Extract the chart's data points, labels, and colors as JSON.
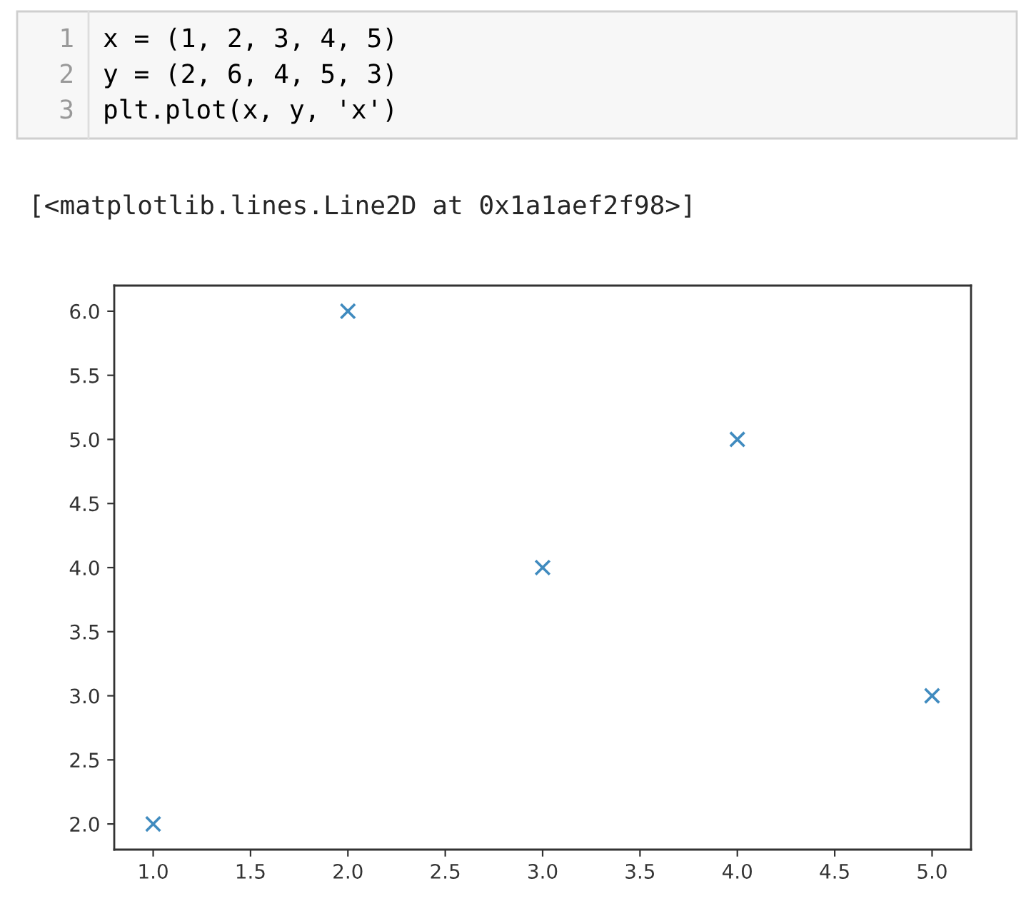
{
  "chart_data": {
    "type": "scatter",
    "annotations": [
      "1",
      "x = (1, 2, 3, 4, 5)",
      "2",
      "y = (2, 6, 4, 5, 3)",
      "3",
      "plt.plot(x, y, 'x')",
      "[<matplotlib.lines.Line2D at 0x1a1aef2f98>]"
    ],
    "x": [
      1,
      2,
      3,
      4,
      5
    ],
    "series": [
      {
        "color": "#1f77b4",
        "values": [
          2,
          6,
          4,
          5,
          3
        ]
      }
    ],
    "marker": "cross",
    "grid": false,
    "xlim": [
      0.8,
      5.2
    ],
    "ylim": [
      1.8,
      6.2
    ],
    "xticks": [
      {
        "value": 1,
        "label": "1.0"
      },
      {
        "value": 1.5,
        "label": "1.5"
      },
      {
        "value": 2,
        "label": "2.0"
      },
      {
        "value": 2.5,
        "label": "2.5"
      },
      {
        "value": 3,
        "label": "3.0"
      },
      {
        "value": 3.5,
        "label": "3.5"
      },
      {
        "value": 4,
        "label": "4.0"
      },
      {
        "value": 4.5,
        "label": "4.5"
      },
      {
        "value": 5,
        "label": "5.0"
      }
    ],
    "yticks": [
      {
        "value": 2,
        "label": "2.0"
      },
      {
        "value": 2.5,
        "label": "2.5"
      },
      {
        "value": 3,
        "label": "3.0"
      },
      {
        "value": 3.5,
        "label": "3.5"
      },
      {
        "value": 4,
        "label": "4.0"
      },
      {
        "value": 4.5,
        "label": "4.5"
      },
      {
        "value": 5,
        "label": "5.0"
      },
      {
        "value": 5.5,
        "label": "5.5"
      },
      {
        "value": 6,
        "label": "6.0"
      }
    ]
  }
}
